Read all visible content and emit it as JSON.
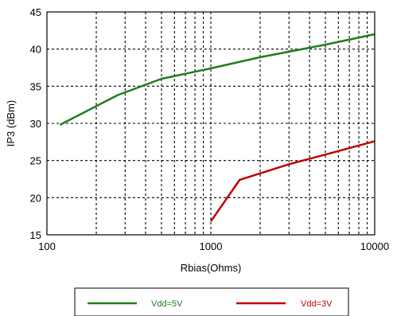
{
  "chart_data": {
    "type": "line",
    "title": "",
    "xlabel": "Rbias(Ohms)",
    "ylabel": "IP3 (dBm)",
    "xscale": "log",
    "xlim": [
      100,
      10000
    ],
    "ylim": [
      15,
      45
    ],
    "xticks": [
      100,
      1000,
      10000
    ],
    "xtick_labels": [
      "100",
      "1000",
      "10000"
    ],
    "yticks": [
      15,
      20,
      25,
      30,
      35,
      40,
      45
    ],
    "ytick_labels": [
      "15",
      "20",
      "25",
      "30",
      "35",
      "40",
      "45"
    ],
    "grid": true,
    "legend_position": "bottom",
    "series": [
      {
        "name": "Vdd=5V",
        "color": "#1e7d1e",
        "x": [
          120,
          270,
          500,
          1000,
          2000,
          5000,
          10000
        ],
        "y": [
          29.8,
          33.8,
          36.0,
          37.4,
          38.9,
          40.6,
          42.0
        ]
      },
      {
        "name": "Vdd=3V",
        "color": "#c00000",
        "x": [
          1000,
          1500,
          3000,
          5000,
          10000
        ],
        "y": [
          16.8,
          22.4,
          24.5,
          25.8,
          27.6
        ]
      }
    ]
  }
}
